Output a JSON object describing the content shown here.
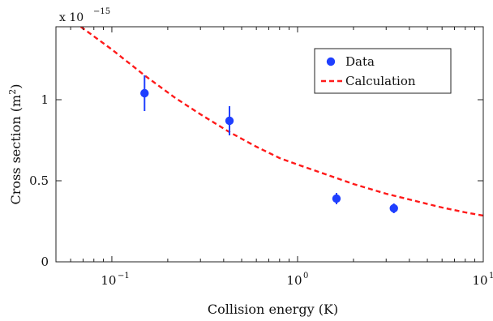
{
  "chart_data": {
    "type": "scatter",
    "title": "",
    "xlabel": "Collision energy (K)",
    "ylabel_main": "Cross section (m",
    "ylabel_sup": "2",
    "ylabel_end": ")",
    "y_multiplier": "x 10",
    "y_multiplier_exp": "−15",
    "x_scale": "log",
    "xlim": [
      0.05,
      10
    ],
    "ylim": [
      0,
      1.45
    ],
    "x_ticks": [
      {
        "value": 0.1,
        "base": "10",
        "exp": "−1"
      },
      {
        "value": 1,
        "base": "10",
        "exp": "0"
      },
      {
        "value": 10,
        "base": "10",
        "exp": "1"
      }
    ],
    "y_ticks": [
      {
        "value": 0,
        "label": "0"
      },
      {
        "value": 0.5,
        "label": "0.5"
      },
      {
        "value": 1,
        "label": "1"
      }
    ],
    "grid": false,
    "legend_position": "top-right",
    "series": [
      {
        "name": "Data",
        "kind": "points",
        "color": "#1f3fff",
        "points": [
          {
            "x": 0.15,
            "y": 1.04,
            "err_low": 0.11,
            "err_high": 0.11
          },
          {
            "x": 0.43,
            "y": 0.87,
            "err_low": 0.09,
            "err_high": 0.09
          },
          {
            "x": 1.62,
            "y": 0.39,
            "err_low": 0.035,
            "err_high": 0.035
          },
          {
            "x": 3.3,
            "y": 0.33,
            "err_low": 0.03,
            "err_high": 0.03
          }
        ]
      },
      {
        "name": "Calculation",
        "kind": "dashed-line",
        "color": "#ff1a1a",
        "points": [
          {
            "x": 0.068,
            "y": 1.45
          },
          {
            "x": 0.1,
            "y": 1.31
          },
          {
            "x": 0.15,
            "y": 1.15
          },
          {
            "x": 0.22,
            "y": 1.01
          },
          {
            "x": 0.3,
            "y": 0.91
          },
          {
            "x": 0.43,
            "y": 0.8
          },
          {
            "x": 0.6,
            "y": 0.71
          },
          {
            "x": 0.8,
            "y": 0.64
          },
          {
            "x": 1.0,
            "y": 0.6
          },
          {
            "x": 1.5,
            "y": 0.53
          },
          {
            "x": 2.0,
            "y": 0.48
          },
          {
            "x": 3.0,
            "y": 0.42
          },
          {
            "x": 4.5,
            "y": 0.37
          },
          {
            "x": 6.0,
            "y": 0.335
          },
          {
            "x": 8.0,
            "y": 0.305
          },
          {
            "x": 10.0,
            "y": 0.285
          }
        ]
      }
    ]
  }
}
